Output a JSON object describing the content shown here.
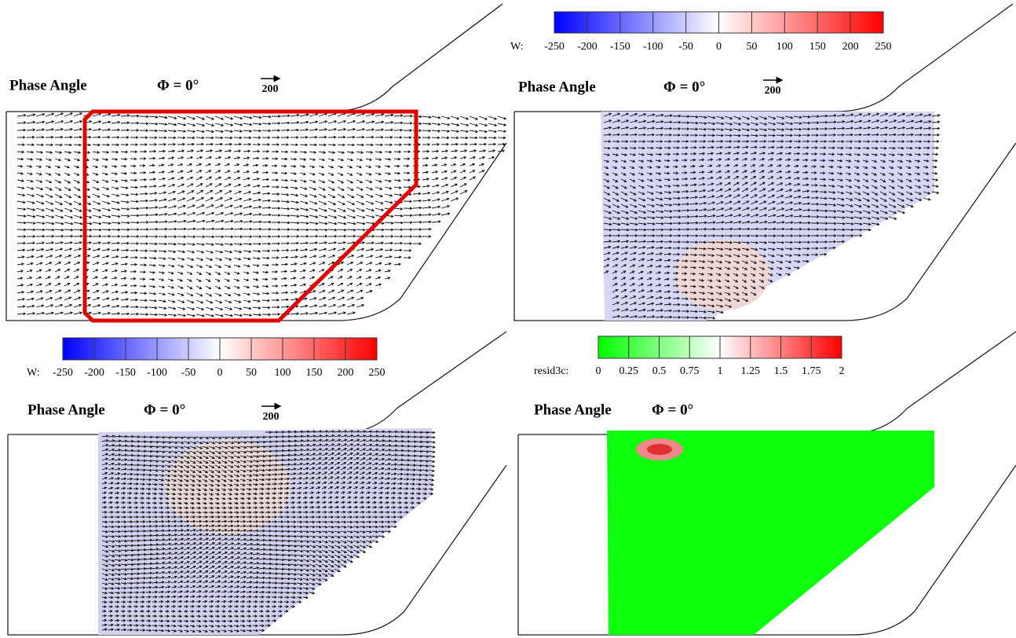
{
  "panels": [
    {
      "title": "Phase Angle",
      "phase": "Φ = 0°",
      "scale": "200"
    },
    {
      "title": "Phase Angle",
      "phase": "Φ = 0°",
      "scale": "200",
      "colorbar": {
        "label": "W:",
        "ticks": [
          -250,
          -200,
          -150,
          -100,
          -50,
          0,
          50,
          100,
          150,
          200,
          250
        ]
      }
    },
    {
      "title": "Phase Angle",
      "phase": "Φ = 0°",
      "scale": "200",
      "colorbar": {
        "label": "W:",
        "ticks": [
          -250,
          -200,
          -150,
          -100,
          -50,
          0,
          50,
          100,
          150,
          200,
          250
        ]
      }
    },
    {
      "title": "Phase Angle",
      "phase": "Φ = 0°",
      "colorbar": {
        "label": "resid3c:",
        "ticks": [
          0,
          0.25,
          0.5,
          0.75,
          1,
          1.25,
          1.5,
          1.75,
          2
        ]
      }
    }
  ]
}
